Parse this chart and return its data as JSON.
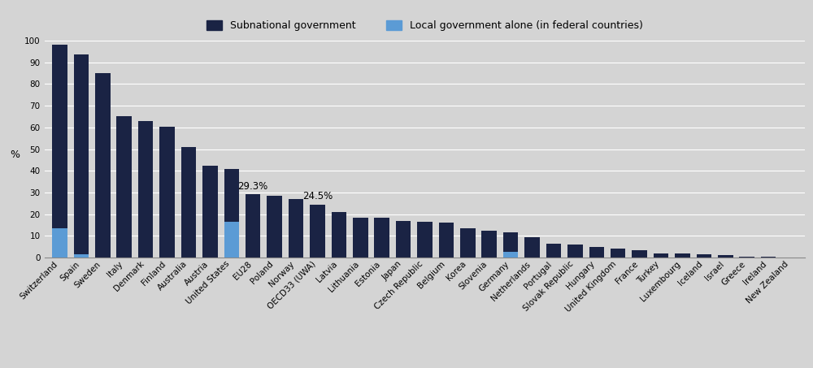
{
  "categories": [
    "Switzerland",
    "Spain",
    "Sweden",
    "Italy",
    "Denmark",
    "Finland",
    "Australia",
    "Austria",
    "United States",
    "EU28",
    "Poland",
    "Norway",
    "OECD33 (UWA)",
    "Latvia",
    "Lithuania",
    "Estonia",
    "Japan",
    "Czech Republic",
    "Belgium",
    "Korea",
    "Slovenia",
    "Germany",
    "Netherlands",
    "Portugal",
    "Slovak Republic",
    "Hungary",
    "United Kingdom",
    "France",
    "Turkey",
    "Luxembourg",
    "Iceland",
    "Israel",
    "Greece",
    "Ireland",
    "New Zealand"
  ],
  "subnational_values": [
    98.0,
    93.5,
    85.0,
    65.0,
    63.0,
    60.5,
    51.0,
    42.5,
    41.0,
    29.3,
    28.5,
    27.0,
    24.5,
    21.0,
    18.5,
    18.5,
    17.0,
    16.5,
    16.0,
    13.5,
    12.5,
    11.5,
    9.5,
    6.5,
    6.0,
    5.0,
    4.0,
    3.5,
    2.0,
    1.8,
    1.5,
    1.2,
    0.5,
    0.3,
    0.2
  ],
  "local_values": [
    13.5,
    1.5,
    0,
    0,
    0,
    0,
    0,
    0,
    16.5,
    0,
    0,
    0,
    0,
    0,
    0,
    0,
    0,
    0,
    0,
    0,
    0,
    2.5,
    0,
    0,
    0,
    0,
    0,
    0,
    0,
    0,
    0,
    0,
    0,
    0,
    0
  ],
  "annotations": [
    {
      "country": "EU28",
      "text": "29.3%",
      "value": 29.3
    },
    {
      "country": "OECD33 (UWA)",
      "text": "24.5%",
      "value": 24.5
    }
  ],
  "subnational_color": "#1a2344",
  "local_color": "#5b9bd5",
  "background_color": "#d4d4d4",
  "plot_bg_color": "#d4d4d4",
  "ylabel": "%",
  "ylim": [
    0,
    100
  ],
  "yticks": [
    0,
    10,
    20,
    30,
    40,
    50,
    60,
    70,
    80,
    90,
    100
  ],
  "legend_labels": [
    "Subnational government",
    "Local government alone (in federal countries)"
  ],
  "grid_color": "#ffffff",
  "tick_label_fontsize": 7.5,
  "ylabel_fontsize": 9,
  "annotation_fontsize": 8.5,
  "legend_fontsize": 9
}
